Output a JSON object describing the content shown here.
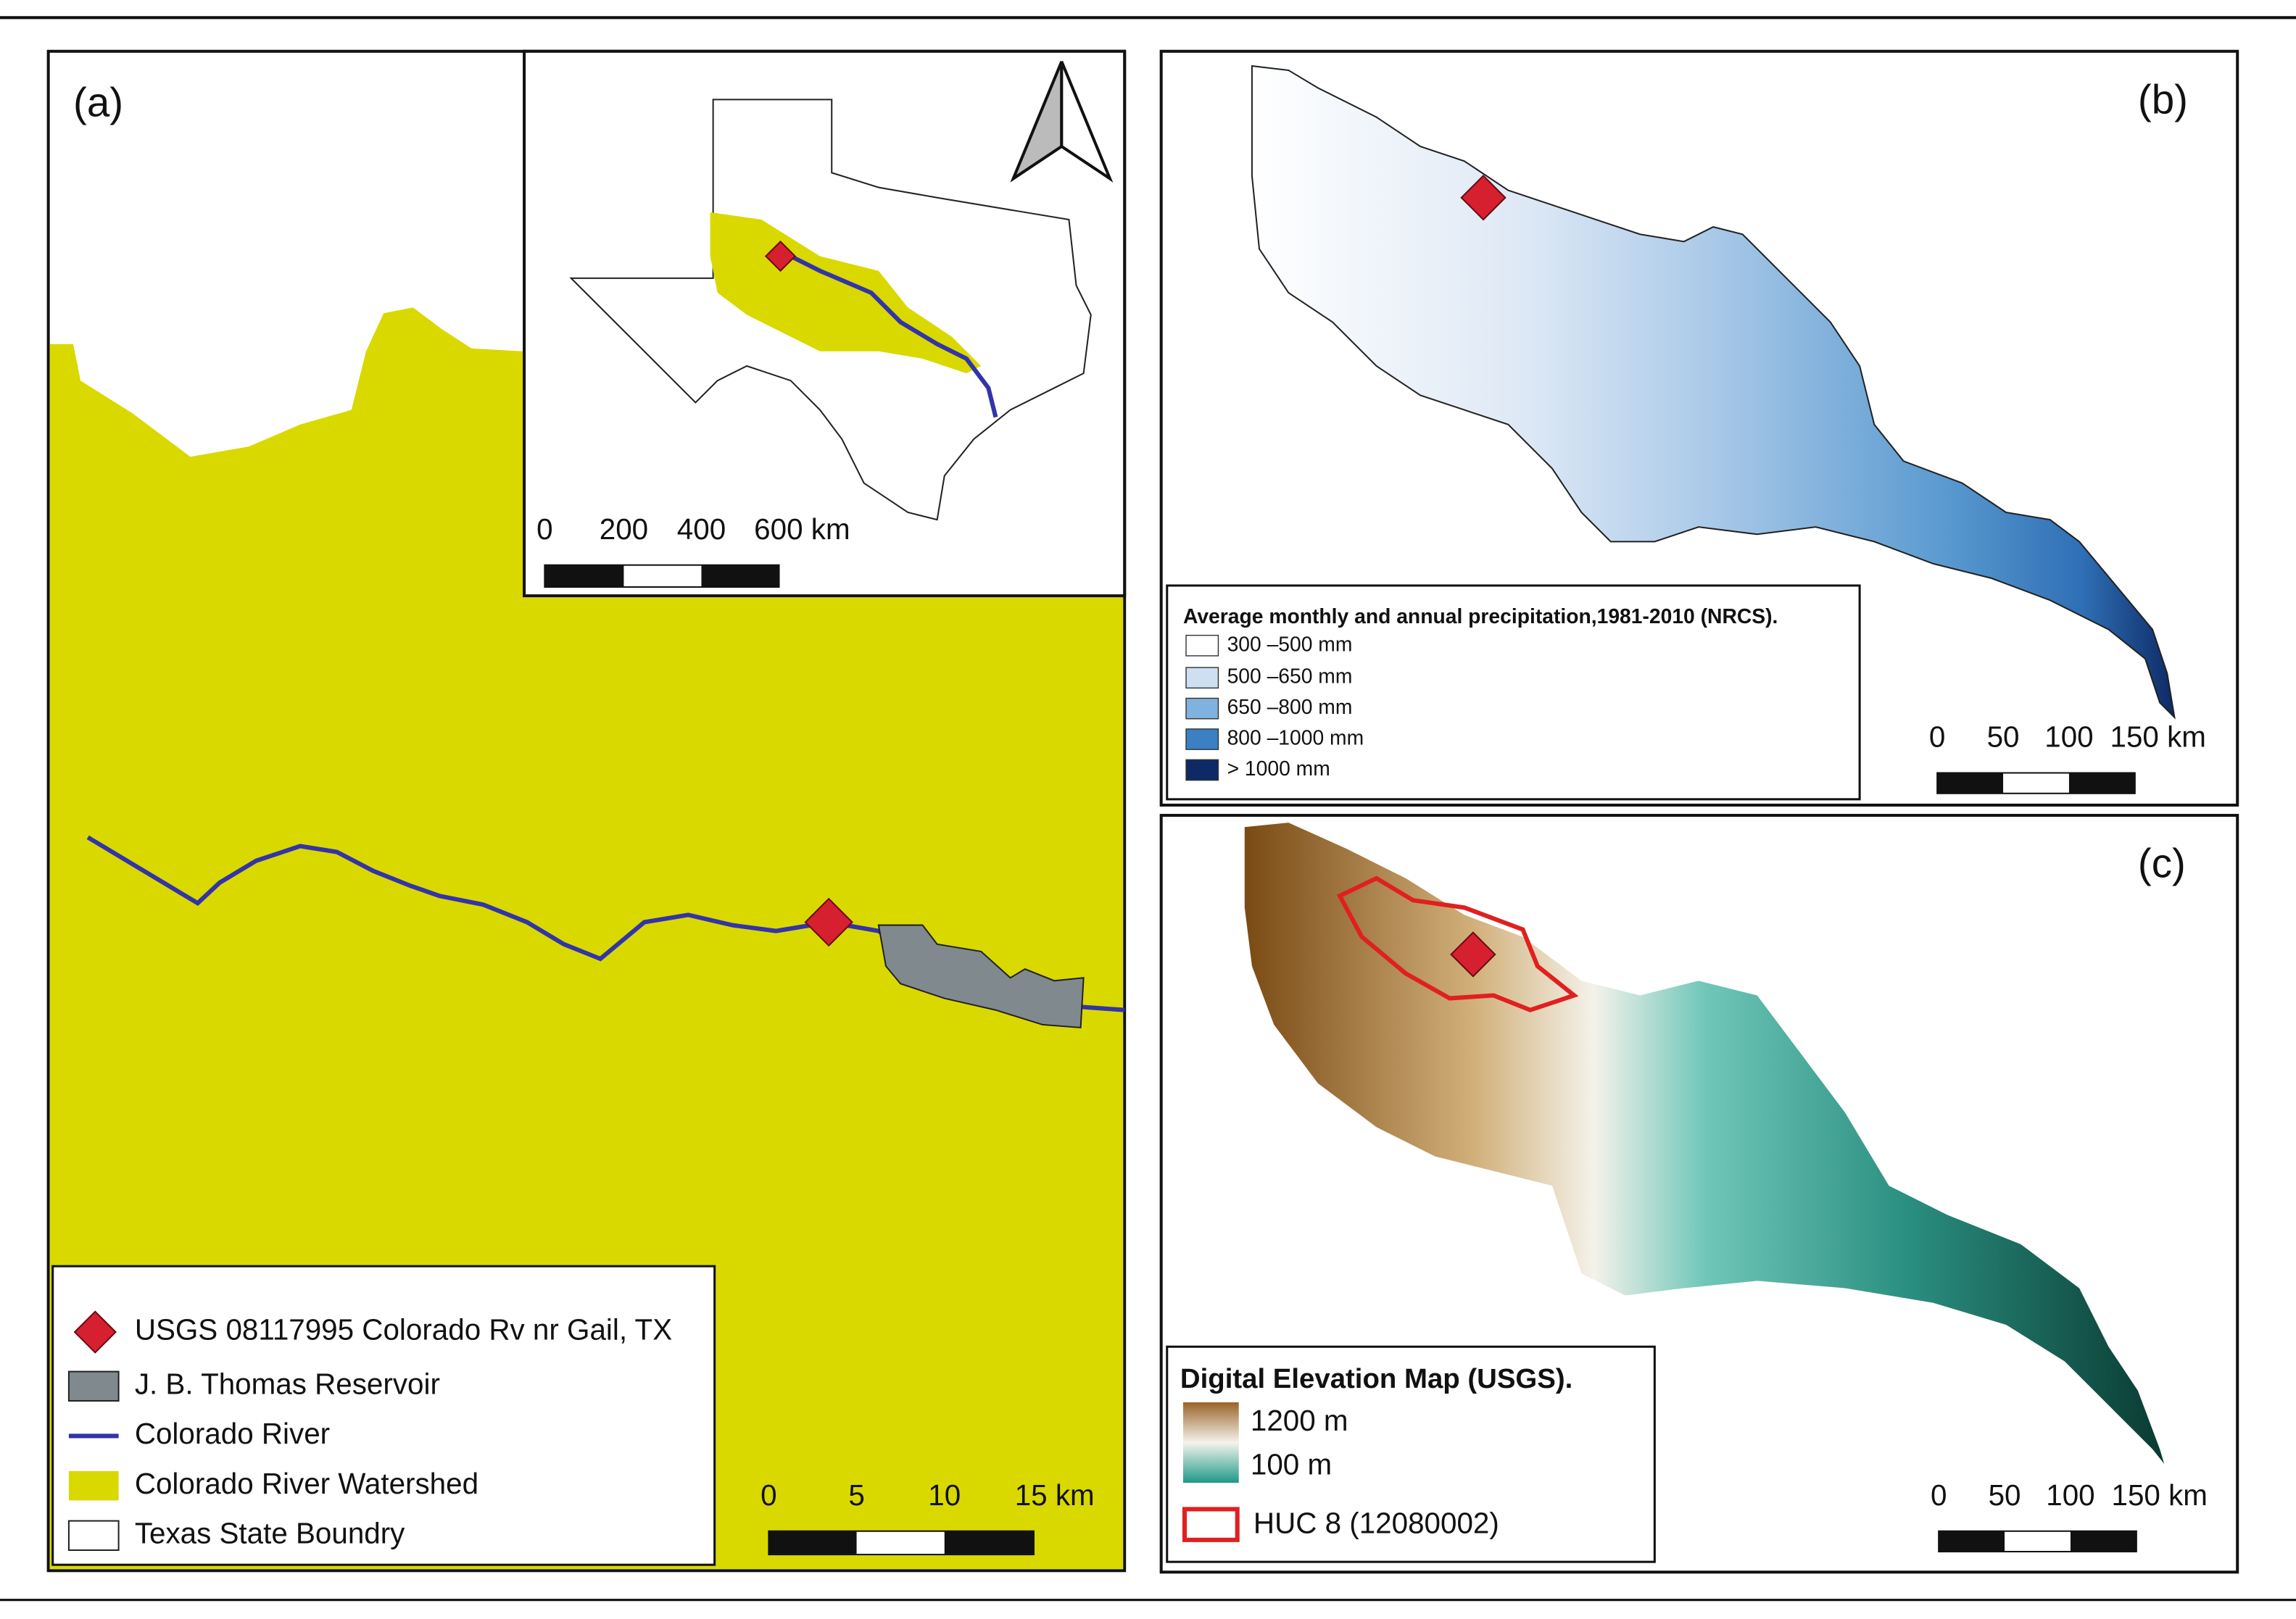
{
  "panel_a": {
    "label": "(a)",
    "legend": [
      "USGS 08117995 Colorado Rv nr Gail, TX",
      "J. B. Thomas Reservoir",
      "Colorado River",
      "Colorado River Watershed",
      "Texas State Boundry"
    ],
    "scale_labels": [
      "0",
      "5",
      "10",
      "15 km"
    ],
    "inset": {
      "scale_labels": [
        "0",
        "200",
        "400",
        "600 km"
      ]
    }
  },
  "panel_b": {
    "label": "(b)",
    "legend_title": "Average monthly and annual precipitation,1981-2010 (NRCS).",
    "legend": [
      "300 –500 mm",
      "500 –650 mm",
      "650 –800 mm",
      "800 –1000 mm",
      "> 1000 mm"
    ],
    "scale_labels": [
      "0",
      "50",
      "100",
      "150 km"
    ]
  },
  "panel_c": {
    "label": "(c)",
    "legend_title": "Digital Elevation Map (USGS).",
    "ramp_labels": [
      "1200 m",
      "100 m"
    ],
    "legend": [
      "HUC 8 (12080002)"
    ],
    "scale_labels": [
      "0",
      "50",
      "100",
      "150 km"
    ]
  }
}
